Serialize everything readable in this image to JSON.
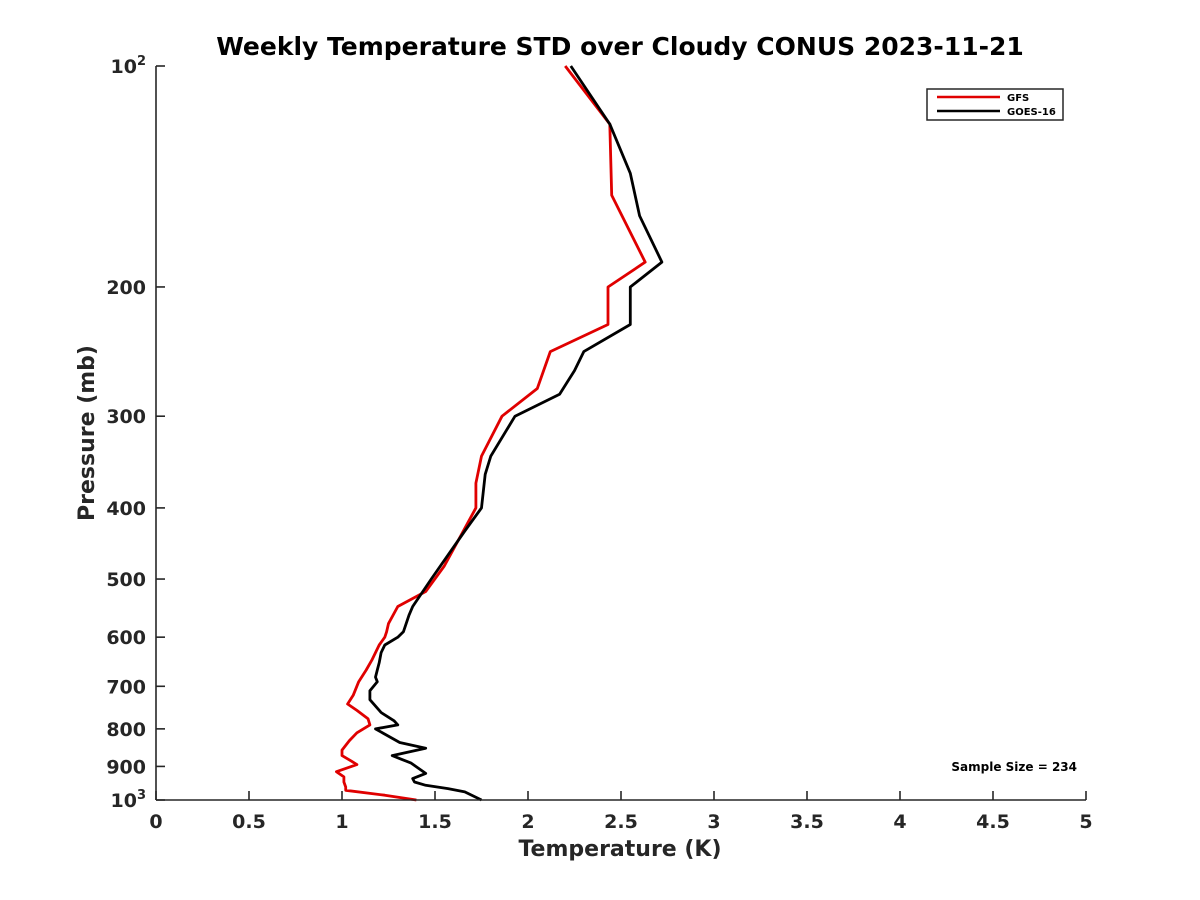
{
  "chart_data": {
    "type": "line",
    "title": "Weekly Temperature STD over Cloudy CONUS 2023-11-21",
    "xlabel": "Temperature (K)",
    "ylabel": "Pressure (mb)",
    "xlim": [
      0,
      5
    ],
    "ylim": [
      100,
      1000
    ],
    "yscale": "log",
    "y_reversed": true,
    "grid": false,
    "legend_position": "top-right",
    "x_ticks": [
      "0",
      "0.5",
      "1",
      "1.5",
      "2",
      "2.5",
      "3",
      "3.5",
      "4",
      "4.5",
      "5"
    ],
    "y_ticks": [
      {
        "value": 100,
        "base": "10",
        "exp": "2"
      },
      {
        "value": 200,
        "label": "200"
      },
      {
        "value": 300,
        "label": "300"
      },
      {
        "value": 400,
        "label": "400"
      },
      {
        "value": 500,
        "label": "500"
      },
      {
        "value": 600,
        "label": "600"
      },
      {
        "value": 700,
        "label": "700"
      },
      {
        "value": 800,
        "label": "800"
      },
      {
        "value": 900,
        "label": "900"
      },
      {
        "value": 1000,
        "base": "10",
        "exp": "3"
      }
    ],
    "annotation": "Sample Size = 234",
    "series": [
      {
        "name": "GFS",
        "color": "#e00000",
        "points": [
          [
            2.2,
            100
          ],
          [
            2.44,
            120
          ],
          [
            2.45,
            150
          ],
          [
            2.63,
            185
          ],
          [
            2.43,
            200
          ],
          [
            2.43,
            225
          ],
          [
            2.12,
            245
          ],
          [
            2.05,
            275
          ],
          [
            1.86,
            300
          ],
          [
            1.75,
            340
          ],
          [
            1.72,
            370
          ],
          [
            1.72,
            400
          ],
          [
            1.55,
            480
          ],
          [
            1.45,
            520
          ],
          [
            1.3,
            545
          ],
          [
            1.25,
            575
          ],
          [
            1.24,
            590
          ],
          [
            1.23,
            600
          ],
          [
            1.2,
            615
          ],
          [
            1.16,
            645
          ],
          [
            1.13,
            665
          ],
          [
            1.09,
            690
          ],
          [
            1.06,
            720
          ],
          [
            1.03,
            740
          ],
          [
            1.08,
            755
          ],
          [
            1.14,
            775
          ],
          [
            1.15,
            790
          ],
          [
            1.08,
            810
          ],
          [
            1.04,
            830
          ],
          [
            1.0,
            855
          ],
          [
            1.0,
            870
          ],
          [
            1.05,
            885
          ],
          [
            1.08,
            895
          ],
          [
            0.97,
            915
          ],
          [
            1.01,
            930
          ],
          [
            1.01,
            945
          ],
          [
            1.02,
            960
          ],
          [
            1.02,
            970
          ],
          [
            1.23,
            985
          ],
          [
            1.4,
            1000
          ]
        ]
      },
      {
        "name": "GOES-16",
        "color": "#000000",
        "points": [
          [
            2.23,
            100
          ],
          [
            2.44,
            120
          ],
          [
            2.55,
            140
          ],
          [
            2.6,
            160
          ],
          [
            2.72,
            185
          ],
          [
            2.55,
            200
          ],
          [
            2.55,
            225
          ],
          [
            2.3,
            245
          ],
          [
            2.25,
            260
          ],
          [
            2.17,
            280
          ],
          [
            1.93,
            300
          ],
          [
            1.8,
            340
          ],
          [
            1.77,
            360
          ],
          [
            1.75,
            400
          ],
          [
            1.66,
            430
          ],
          [
            1.48,
            500
          ],
          [
            1.38,
            545
          ],
          [
            1.36,
            560
          ],
          [
            1.33,
            590
          ],
          [
            1.3,
            600
          ],
          [
            1.23,
            615
          ],
          [
            1.21,
            630
          ],
          [
            1.2,
            650
          ],
          [
            1.19,
            665
          ],
          [
            1.18,
            680
          ],
          [
            1.19,
            690
          ],
          [
            1.15,
            710
          ],
          [
            1.15,
            730
          ],
          [
            1.21,
            760
          ],
          [
            1.28,
            780
          ],
          [
            1.3,
            790
          ],
          [
            1.18,
            800
          ],
          [
            1.31,
            835
          ],
          [
            1.45,
            850
          ],
          [
            1.27,
            870
          ],
          [
            1.32,
            880
          ],
          [
            1.37,
            890
          ],
          [
            1.45,
            920
          ],
          [
            1.38,
            935
          ],
          [
            1.39,
            945
          ],
          [
            1.45,
            955
          ],
          [
            1.57,
            965
          ],
          [
            1.66,
            975
          ],
          [
            1.75,
            1000
          ]
        ]
      }
    ]
  }
}
